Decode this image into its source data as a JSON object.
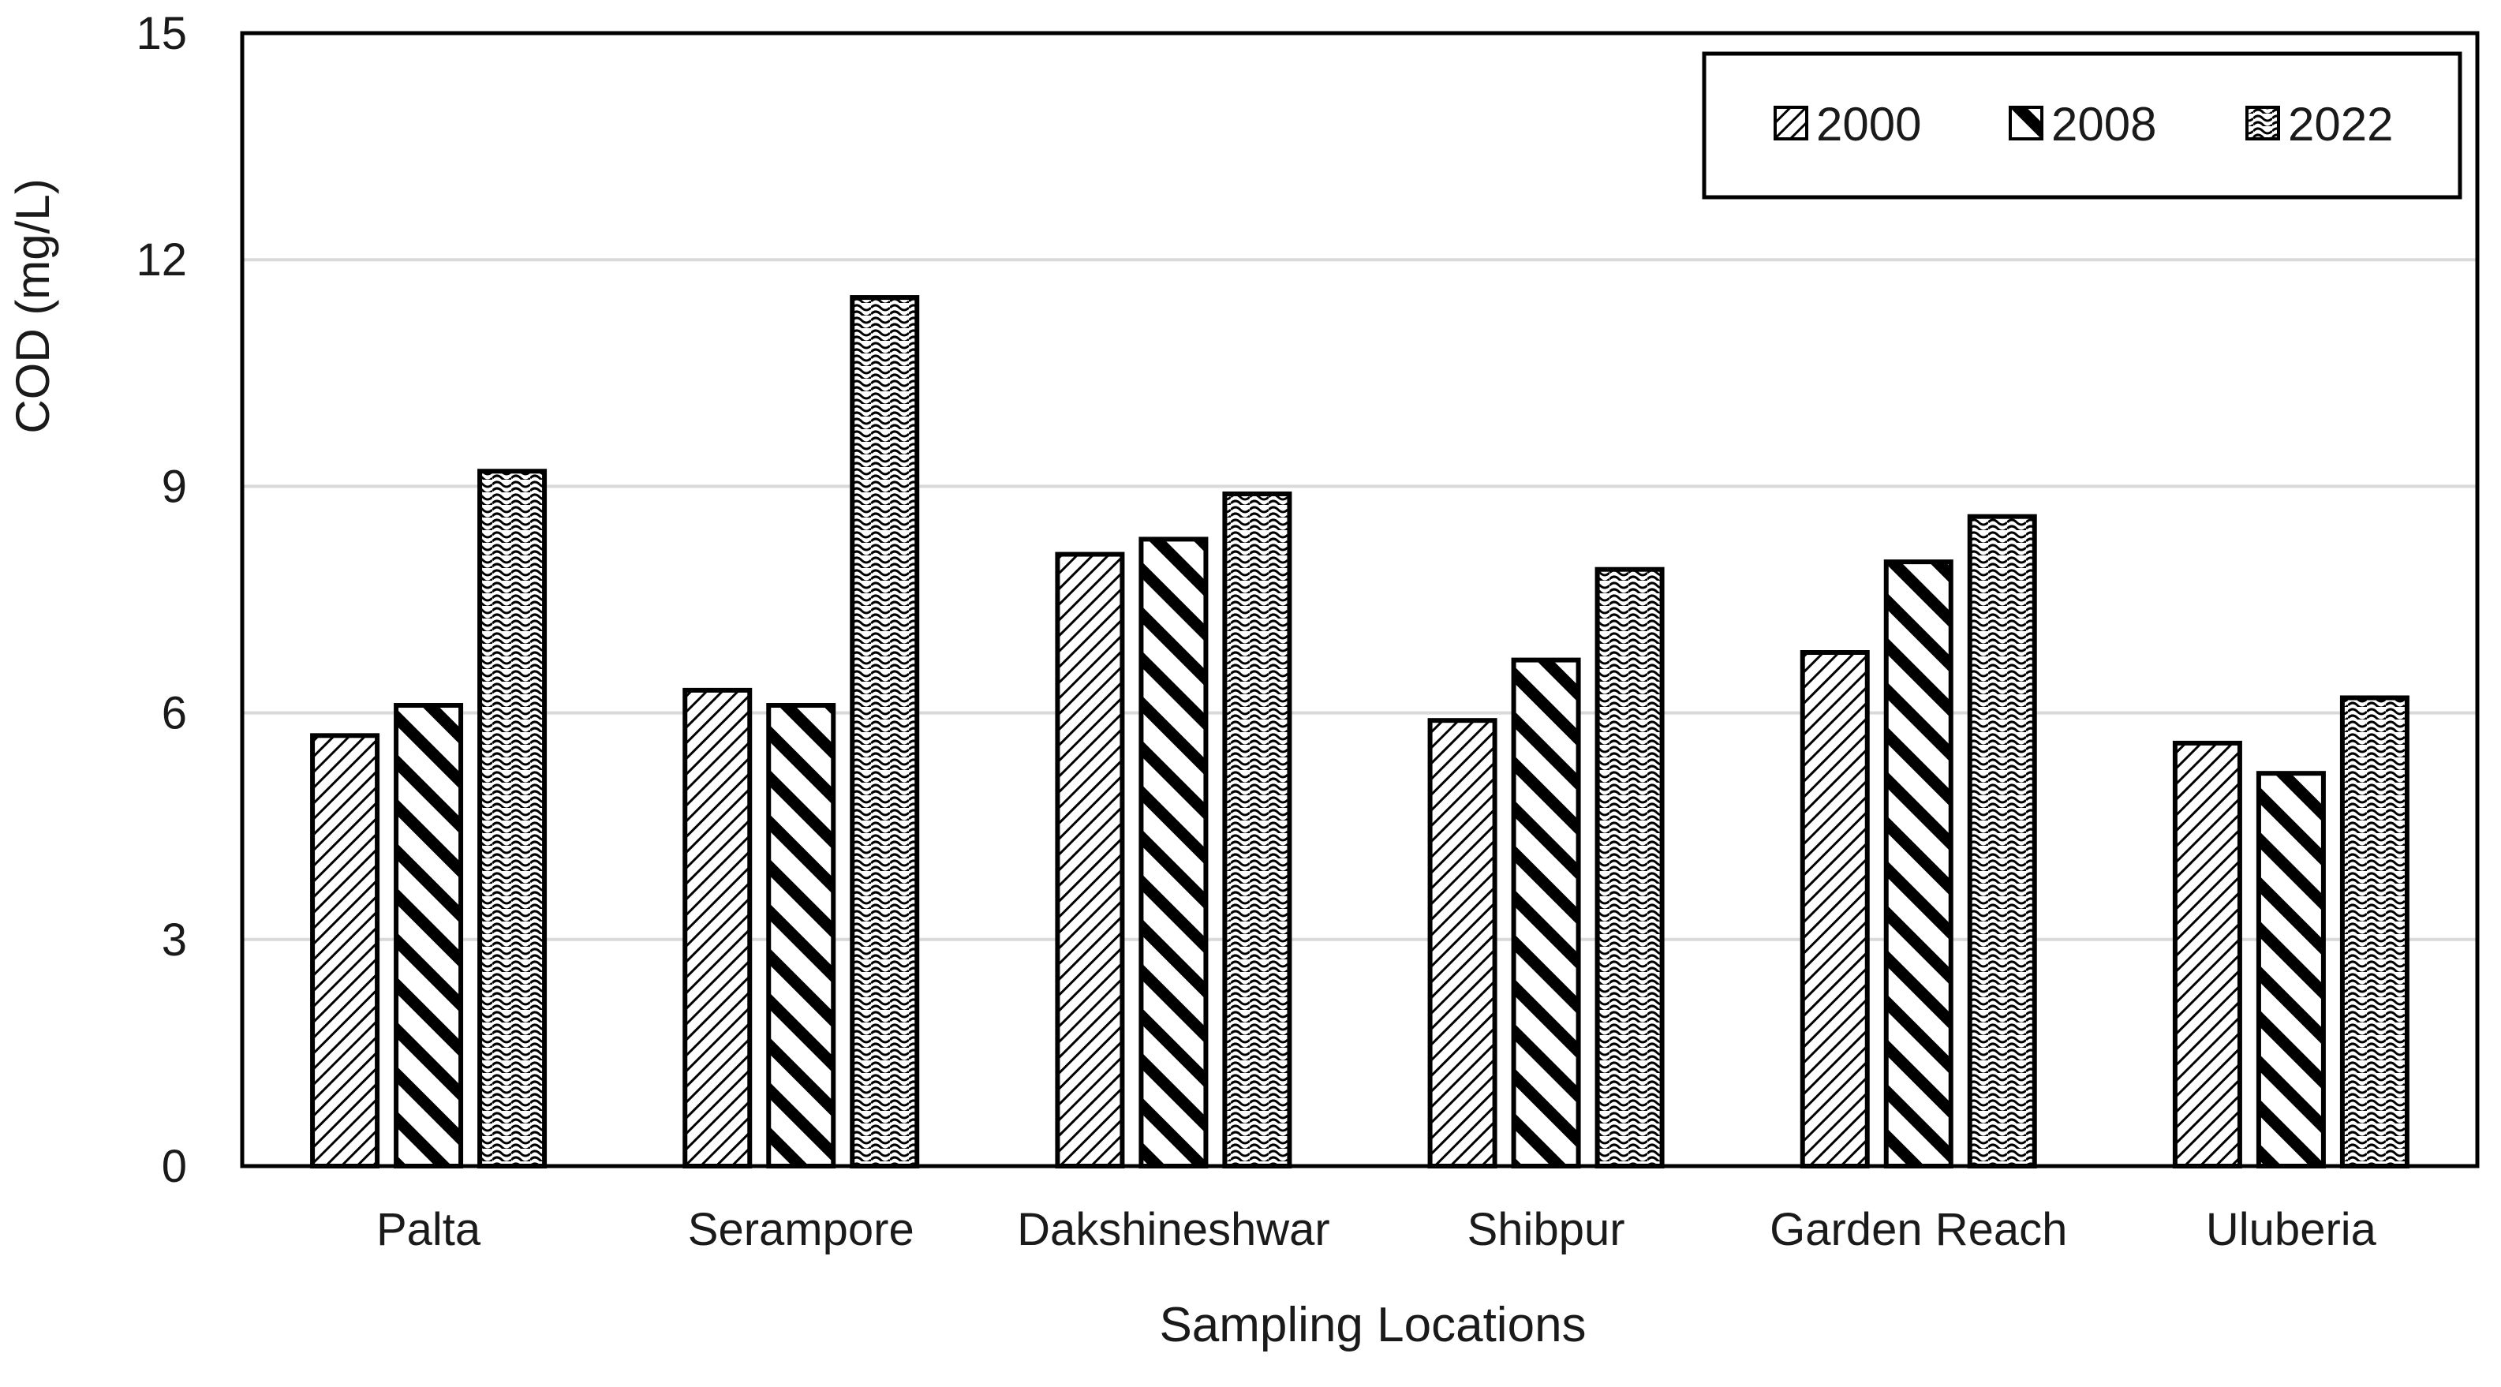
{
  "chart_data": {
    "type": "bar",
    "title": "",
    "xlabel": "Sampling Locations",
    "ylabel": "COD (mg/L)",
    "ylim": [
      0,
      15
    ],
    "yticks": [
      0,
      3,
      6,
      9,
      12,
      15
    ],
    "grid": "horizontal",
    "legend_position": "top-right",
    "categories": [
      "Palta",
      "Serampore",
      "Dakshineshwar",
      "Shibpur",
      "Garden Reach",
      "Uluberia"
    ],
    "series": [
      {
        "name": "2000",
        "pattern": "fine-diagonal-hatch",
        "values": [
          5.7,
          6.3,
          8.1,
          5.9,
          6.8,
          5.6
        ]
      },
      {
        "name": "2008",
        "pattern": "wide-diagonal-stripes",
        "values": [
          6.1,
          6.1,
          8.3,
          6.7,
          8.0,
          5.2
        ]
      },
      {
        "name": "2022",
        "pattern": "wave",
        "values": [
          9.2,
          11.5,
          8.9,
          7.9,
          8.6,
          6.2
        ]
      }
    ],
    "colors": {
      "bar_fill": "#ffffff",
      "bar_stroke": "#000000",
      "grid": "#d9d9d9",
      "axis": "#000000"
    }
  }
}
